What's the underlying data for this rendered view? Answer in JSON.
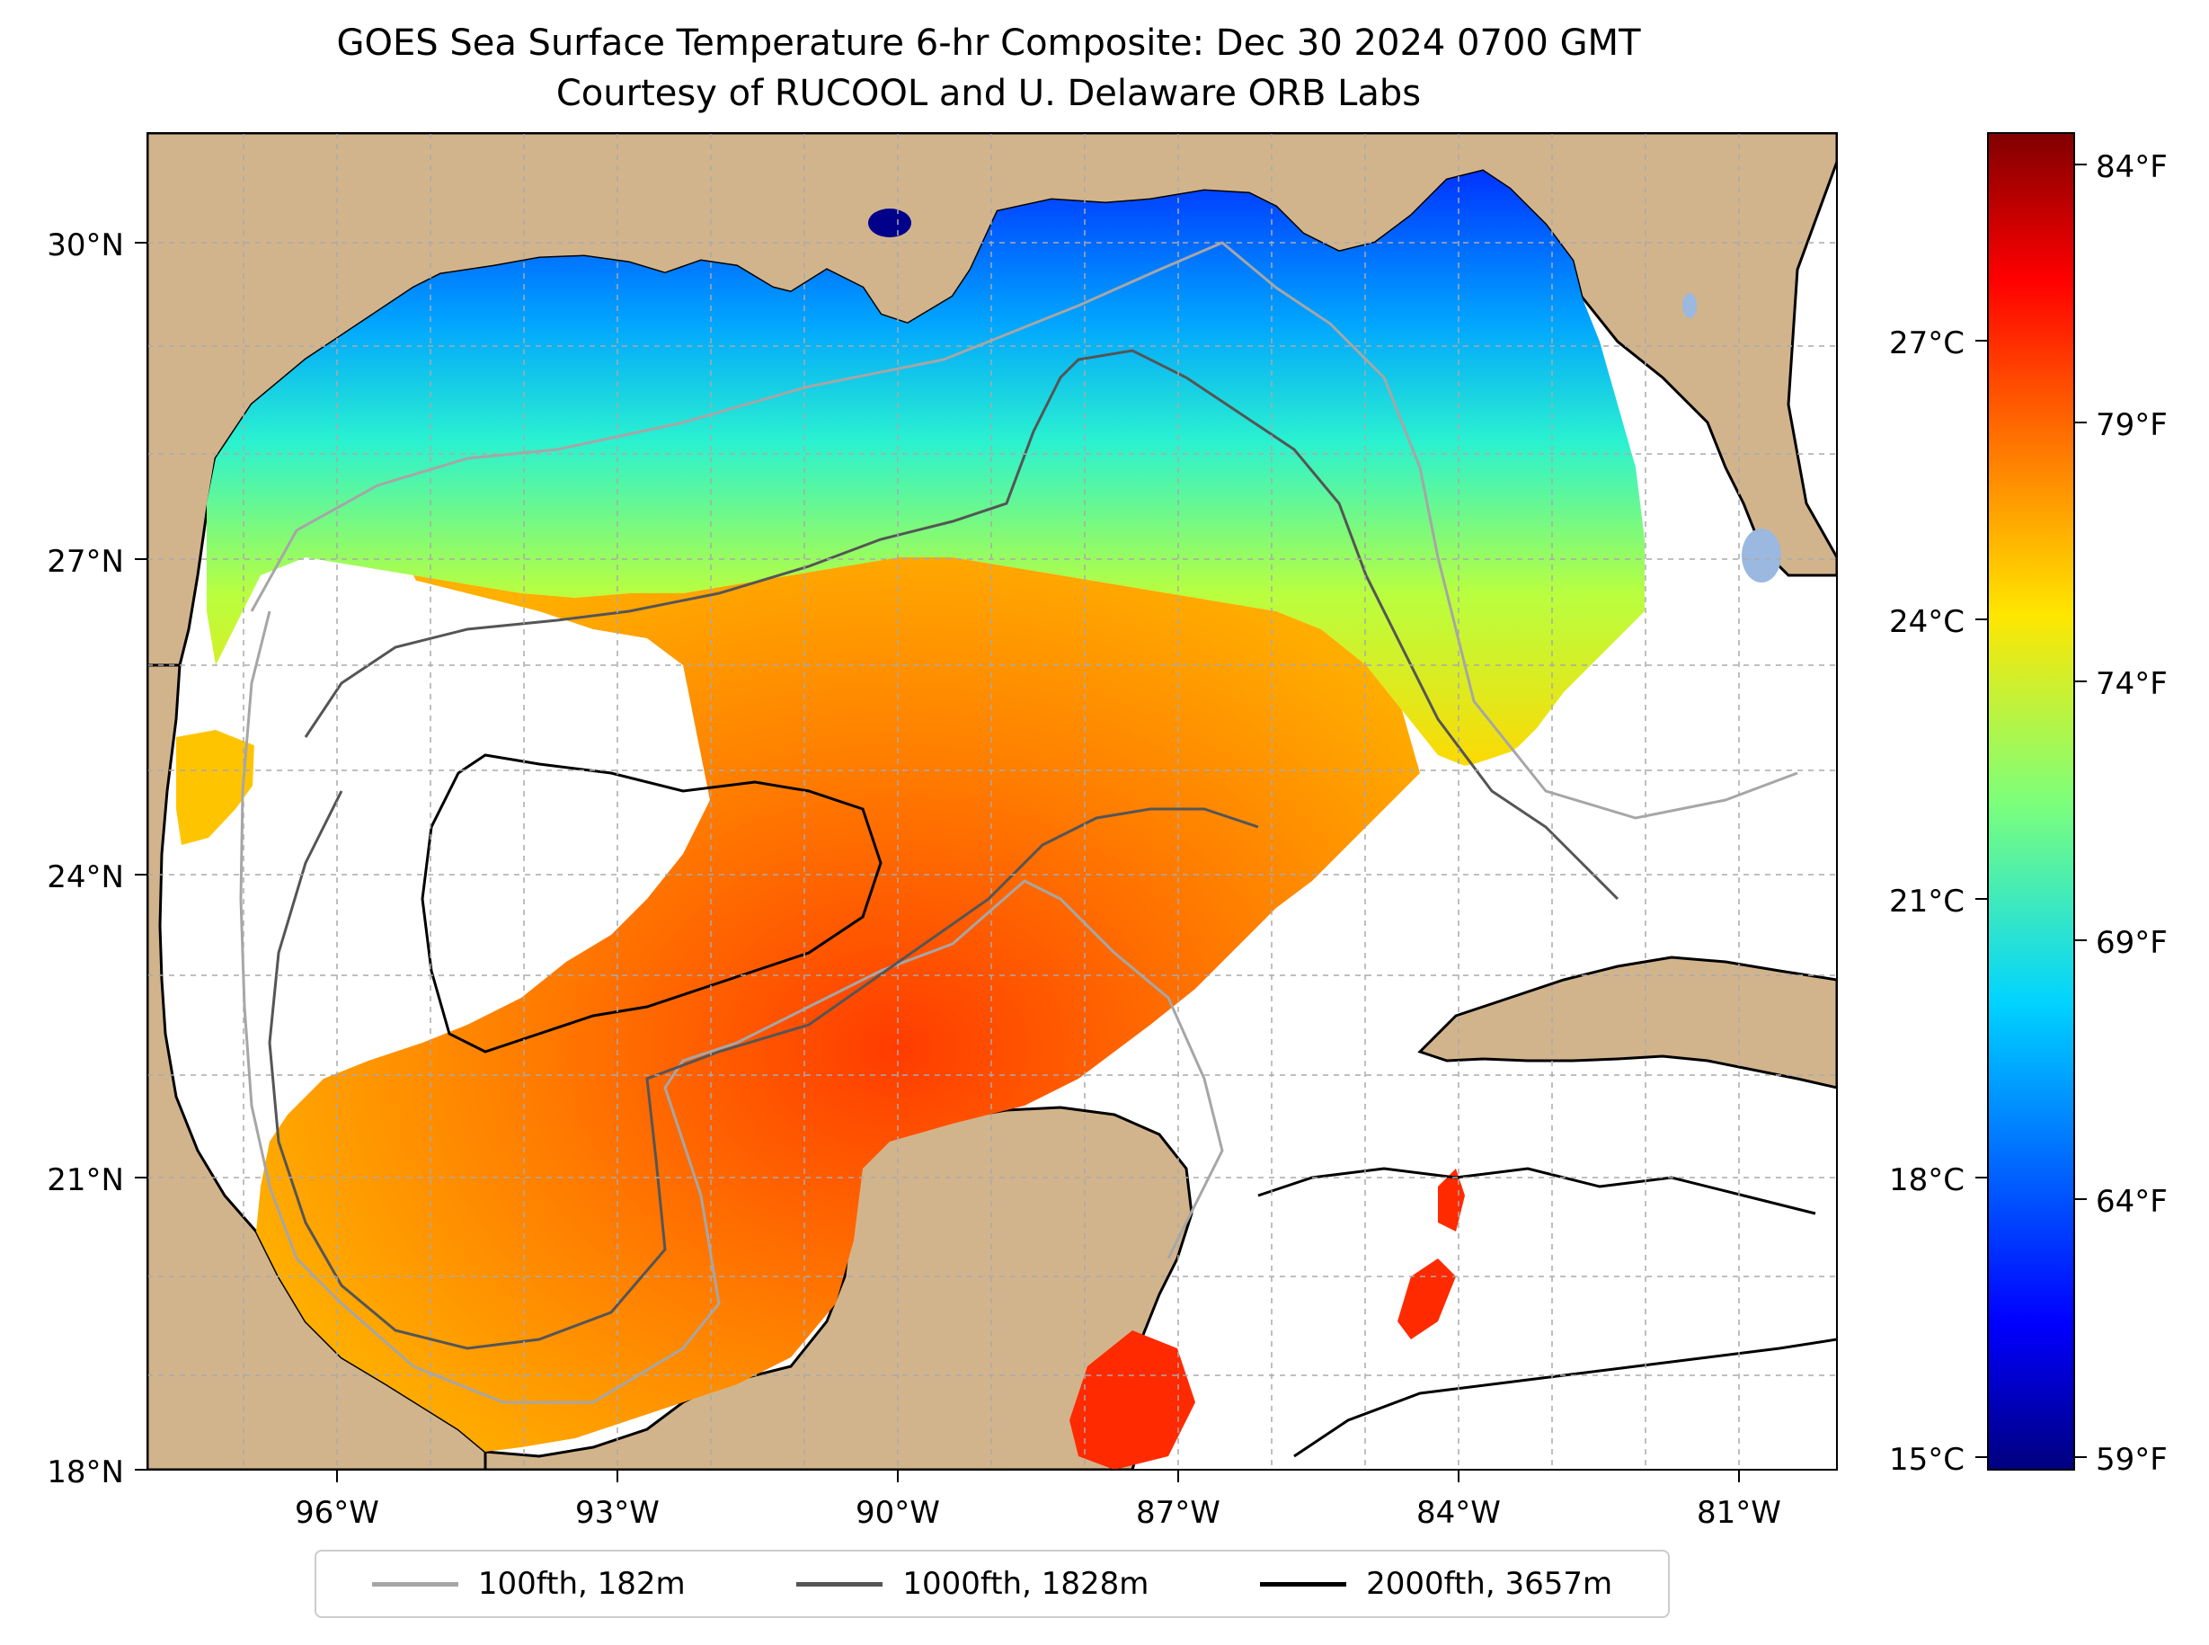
{
  "title": {
    "line1": "GOES Sea Surface Temperature 6-hr Composite: Dec 30 2024 0700 GMT",
    "line2": "Courtesy of RUCOOL and U. Delaware ORB Labs"
  },
  "map": {
    "lat_labels": [
      "30°N",
      "27°N",
      "24°N",
      "21°N",
      "18°N"
    ],
    "lon_labels": [
      "96°W",
      "93°W",
      "90°W",
      "87°W",
      "84°W",
      "81°W"
    ],
    "colors": {
      "land": "#d2b48c",
      "ocean_nodata": "#ffffff",
      "lakes": "#9ab8e0"
    }
  },
  "colorbar": {
    "celsius_labels": [
      "27°C",
      "24°C",
      "21°C",
      "18°C",
      "15°C"
    ],
    "fahrenheit_labels": [
      "84°F",
      "79°F",
      "74°F",
      "69°F",
      "64°F",
      "59°F"
    ],
    "colormap": "jet",
    "range_c": [
      15,
      29
    ]
  },
  "legend": {
    "items": [
      {
        "label": "100fth, 182m",
        "color": "#a6a6a6"
      },
      {
        "label": "1000fth, 1828m",
        "color": "#555555"
      },
      {
        "label": "2000fth, 3657m",
        "color": "#000000"
      }
    ]
  }
}
